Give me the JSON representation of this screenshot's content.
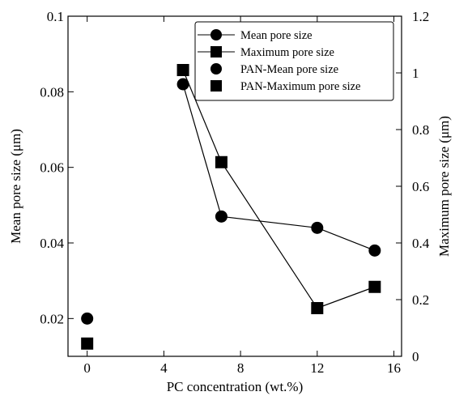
{
  "chart_data": {
    "type": "scatter",
    "xlabel": "PC concentration (wt.%)",
    "ylabel": "Mean pore size (μm)",
    "y2label": "Maximum pore size (μm)",
    "xlim": [
      -1,
      16.4
    ],
    "ylim": [
      0.01,
      0.1
    ],
    "y2lim": [
      0,
      1.2
    ],
    "x_ticks": [
      0,
      4,
      8,
      12,
      16
    ],
    "y_ticks": [
      0.02,
      0.04,
      0.06,
      0.08,
      0.1
    ],
    "y2_ticks": [
      0,
      0.2,
      0.4,
      0.6,
      0.8,
      1,
      1.2
    ],
    "x_tick_labels": [
      "0",
      "4",
      "8",
      "12",
      "16"
    ],
    "y_tick_labels": [
      "0.02",
      "0.04",
      "0.06",
      "0.08",
      "0.1"
    ],
    "y2_tick_labels": [
      "0",
      "0.2",
      "0.4",
      "0.6",
      "0.8",
      "1",
      "1.2"
    ],
    "grid": false,
    "legend_position": "top-right",
    "series": [
      {
        "name": "Mean pore size",
        "axis": "left",
        "marker": "circle",
        "line": true,
        "x": [
          5,
          7,
          12,
          15
        ],
        "y": [
          0.082,
          0.047,
          0.044,
          0.038
        ]
      },
      {
        "name": "Maximum pore size",
        "axis": "right",
        "marker": "square",
        "line": true,
        "x": [
          5,
          7,
          12,
          15
        ],
        "y": [
          1.01,
          0.685,
          0.17,
          0.245
        ]
      },
      {
        "name": "PAN-Mean pore size",
        "axis": "left",
        "marker": "circle",
        "line": false,
        "x": [
          0
        ],
        "y": [
          0.02
        ]
      },
      {
        "name": "PAN-Maximum pore size",
        "axis": "right",
        "marker": "square",
        "line": false,
        "x": [
          0
        ],
        "y": [
          0.045
        ]
      }
    ]
  }
}
